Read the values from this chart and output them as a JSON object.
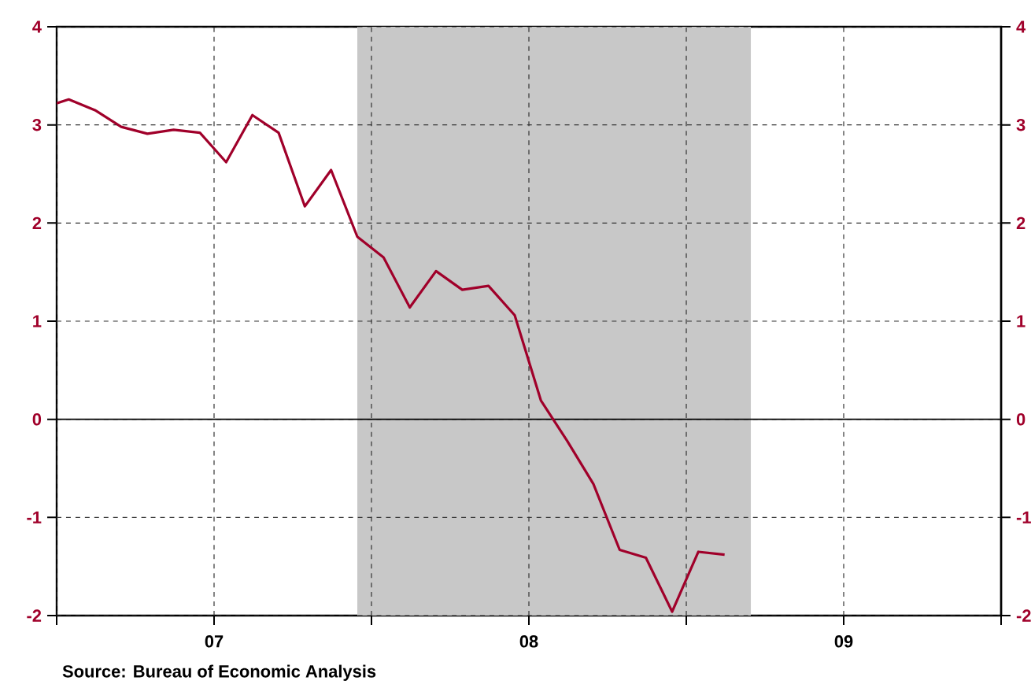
{
  "chart_data": {
    "type": "line",
    "x": [
      "2007-01-01",
      "2007-01-15",
      "2007-02-15",
      "2007-03-15",
      "2007-04-15",
      "2007-05-15",
      "2007-06-15",
      "2007-07-15",
      "2007-08-15",
      "2007-09-15",
      "2007-10-15",
      "2007-11-15",
      "2007-12-15",
      "2008-01-15",
      "2008-02-15",
      "2008-03-15",
      "2008-04-15",
      "2008-05-15",
      "2008-06-15",
      "2008-07-15",
      "2008-08-15",
      "2008-09-15",
      "2008-10-15",
      "2008-11-15",
      "2008-12-15",
      "2009-01-15",
      "2009-02-15"
    ],
    "series": [
      {
        "color": "#a0002a",
        "values": [
          3.22,
          3.26,
          3.15,
          2.98,
          2.91,
          2.95,
          2.92,
          2.62,
          3.1,
          2.92,
          2.17,
          2.54,
          1.86,
          1.65,
          1.14,
          1.51,
          1.32,
          1.36,
          1.06,
          0.19,
          -0.22,
          -0.66,
          -1.33,
          -1.41,
          -1.96,
          -1.35,
          -1.38
        ]
      }
    ],
    "xlim": [
      "2007-01-01",
      "2010-01-01"
    ],
    "xticks": [
      {
        "value": "2007-01-01",
        "label": null
      },
      {
        "value": "2007-07-01",
        "label": "07"
      },
      {
        "value": "2008-01-01",
        "label": null
      },
      {
        "value": "2008-07-01",
        "label": "08"
      },
      {
        "value": "2009-01-01",
        "label": null
      },
      {
        "value": "2009-07-01",
        "label": "09"
      },
      {
        "value": "2010-01-01",
        "label": null
      }
    ],
    "ylim": [
      -2,
      4
    ],
    "yticks": [
      -2,
      -1,
      0,
      1,
      2,
      3,
      4
    ],
    "y2lim": [
      -2,
      4
    ],
    "y2ticks": [
      -2,
      -1,
      0,
      1,
      2,
      3,
      4
    ],
    "grid": true,
    "bands": [
      {
        "axis": "x",
        "from": "2007-12-15",
        "to": "2009-03-15",
        "color": "#c8c8c8"
      }
    ],
    "ref_lines": [
      {
        "axis": "y",
        "value": 0,
        "color": "#000000"
      }
    ],
    "annotations": [
      "Source:  Bureau of Economic Analysis"
    ]
  }
}
